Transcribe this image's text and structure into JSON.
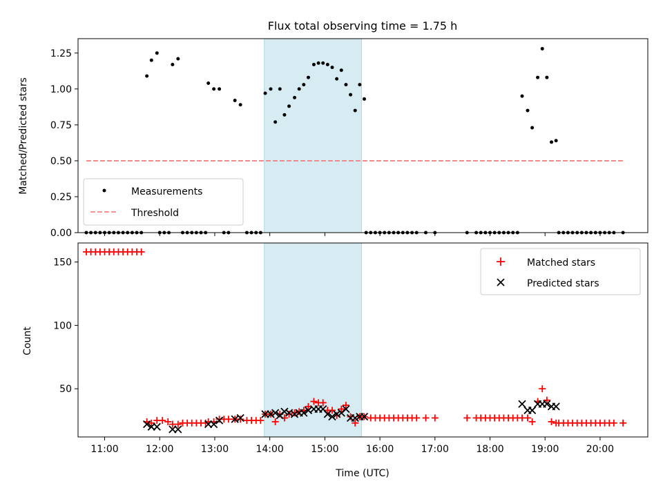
{
  "chart_data": [
    {
      "type": "scatter",
      "title": "Flux total observing time = 1.75 h",
      "xlabel": "",
      "ylabel": "Matched/Predicted stars",
      "xlim": [
        "10:31",
        "20:52"
      ],
      "ylim": [
        0,
        1.35
      ],
      "yticks": [
        "0.00",
        "0.25",
        "0.50",
        "0.75",
        "1.00",
        "1.25"
      ],
      "highlight_span": [
        "13:54",
        "15:40"
      ],
      "legend": {
        "placement": "lower-left",
        "entries": [
          "Measurements",
          "Threshold"
        ]
      },
      "series": [
        {
          "name": "Measurements",
          "marker": "dot",
          "color": "#000000",
          "points": [
            [
              "10:40",
              0
            ],
            [
              "10:45",
              0
            ],
            [
              "10:50",
              0
            ],
            [
              "10:55",
              0
            ],
            [
              "11:00",
              0
            ],
            [
              "11:05",
              0
            ],
            [
              "11:10",
              0
            ],
            [
              "11:15",
              0
            ],
            [
              "11:20",
              0
            ],
            [
              "11:25",
              0
            ],
            [
              "11:30",
              0
            ],
            [
              "11:35",
              0
            ],
            [
              "11:40",
              0
            ],
            [
              "11:46",
              1.09
            ],
            [
              "11:51",
              1.2
            ],
            [
              "11:57",
              1.25
            ],
            [
              "12:00",
              0
            ],
            [
              "12:05",
              0
            ],
            [
              "12:10",
              0
            ],
            [
              "12:14",
              1.17
            ],
            [
              "12:20",
              1.21
            ],
            [
              "12:25",
              0
            ],
            [
              "12:30",
              0
            ],
            [
              "12:35",
              0
            ],
            [
              "12:40",
              0
            ],
            [
              "12:45",
              0
            ],
            [
              "12:50",
              0
            ],
            [
              "12:53",
              1.04
            ],
            [
              "12:59",
              1.0
            ],
            [
              "13:05",
              1.0
            ],
            [
              "13:10",
              0
            ],
            [
              "13:15",
              0
            ],
            [
              "13:22",
              0.92
            ],
            [
              "13:28",
              0.89
            ],
            [
              "13:35",
              0
            ],
            [
              "13:40",
              0
            ],
            [
              "13:45",
              0
            ],
            [
              "13:50",
              0
            ],
            [
              "13:55",
              0.97
            ],
            [
              "14:01",
              1.0
            ],
            [
              "14:06",
              0.77
            ],
            [
              "14:11",
              1.0
            ],
            [
              "14:16",
              0.82
            ],
            [
              "14:21",
              0.88
            ],
            [
              "14:27",
              0.94
            ],
            [
              "14:32",
              1.0
            ],
            [
              "14:37",
              1.03
            ],
            [
              "14:42",
              1.08
            ],
            [
              "14:48",
              1.17
            ],
            [
              "14:53",
              1.18
            ],
            [
              "14:58",
              1.18
            ],
            [
              "15:03",
              1.17
            ],
            [
              "15:08",
              1.15
            ],
            [
              "15:13",
              1.07
            ],
            [
              "15:18",
              1.13
            ],
            [
              "15:23",
              1.03
            ],
            [
              "15:28",
              0.96
            ],
            [
              "15:33",
              0.85
            ],
            [
              "15:38",
              1.03
            ],
            [
              "15:43",
              0.93
            ],
            [
              "15:45",
              0
            ],
            [
              "15:50",
              0
            ],
            [
              "15:55",
              0
            ],
            [
              "16:00",
              0
            ],
            [
              "16:05",
              0
            ],
            [
              "16:10",
              0
            ],
            [
              "16:15",
              0
            ],
            [
              "16:20",
              0
            ],
            [
              "16:25",
              0
            ],
            [
              "16:30",
              0
            ],
            [
              "16:35",
              0
            ],
            [
              "16:40",
              0
            ],
            [
              "16:50",
              0
            ],
            [
              "17:00",
              0
            ],
            [
              "17:35",
              0
            ],
            [
              "17:45",
              0
            ],
            [
              "17:50",
              0
            ],
            [
              "17:55",
              0
            ],
            [
              "18:00",
              0
            ],
            [
              "18:05",
              0
            ],
            [
              "18:10",
              0
            ],
            [
              "18:15",
              0
            ],
            [
              "18:20",
              0
            ],
            [
              "18:25",
              0
            ],
            [
              "18:30",
              0
            ],
            [
              "18:35",
              0.95
            ],
            [
              "18:41",
              0.85
            ],
            [
              "18:46",
              0.73
            ],
            [
              "18:52",
              1.08
            ],
            [
              "18:57",
              1.28
            ],
            [
              "19:02",
              1.08
            ],
            [
              "19:07",
              0.63
            ],
            [
              "19:12",
              0.64
            ],
            [
              "19:15",
              0
            ],
            [
              "19:20",
              0
            ],
            [
              "19:25",
              0
            ],
            [
              "19:30",
              0
            ],
            [
              "19:35",
              0
            ],
            [
              "19:40",
              0
            ],
            [
              "19:45",
              0
            ],
            [
              "19:50",
              0
            ],
            [
              "19:55",
              0
            ],
            [
              "20:00",
              0
            ],
            [
              "20:05",
              0
            ],
            [
              "20:10",
              0
            ],
            [
              "20:15",
              0
            ],
            [
              "20:25",
              0
            ]
          ]
        },
        {
          "name": "Threshold",
          "type": "line",
          "style": "dashed",
          "color": "#ff7f7f",
          "points": [
            [
              "10:40",
              0.5
            ],
            [
              "20:25",
              0.5
            ]
          ]
        }
      ]
    },
    {
      "type": "scatter",
      "title": "",
      "xlabel": "Time (UTC)",
      "ylabel": "Count",
      "xlim": [
        "10:31",
        "20:52"
      ],
      "ylim": [
        12,
        165
      ],
      "yticks": [
        "50",
        "100",
        "150"
      ],
      "xticks": [
        "11:00",
        "12:00",
        "13:00",
        "14:00",
        "15:00",
        "16:00",
        "17:00",
        "18:00",
        "19:00",
        "20:00"
      ],
      "highlight_span": [
        "13:54",
        "15:40"
      ],
      "legend": {
        "placement": "upper-right",
        "entries": [
          "Matched stars",
          "Predicted stars"
        ]
      },
      "series": [
        {
          "name": "Matched stars",
          "marker": "plus",
          "color": "#ff0000",
          "points": [
            [
              "10:40",
              158
            ],
            [
              "10:45",
              158
            ],
            [
              "10:50",
              158
            ],
            [
              "10:55",
              158
            ],
            [
              "11:00",
              158
            ],
            [
              "11:05",
              158
            ],
            [
              "11:10",
              158
            ],
            [
              "11:15",
              158
            ],
            [
              "11:20",
              158
            ],
            [
              "11:25",
              158
            ],
            [
              "11:30",
              158
            ],
            [
              "11:35",
              158
            ],
            [
              "11:40",
              158
            ],
            [
              "11:46",
              24
            ],
            [
              "11:51",
              23
            ],
            [
              "11:57",
              25
            ],
            [
              "12:03",
              25
            ],
            [
              "12:09",
              24
            ],
            [
              "12:14",
              22
            ],
            [
              "12:20",
              22
            ],
            [
              "12:25",
              23
            ],
            [
              "12:30",
              23
            ],
            [
              "12:35",
              23
            ],
            [
              "12:40",
              23
            ],
            [
              "12:45",
              23
            ],
            [
              "12:50",
              23
            ],
            [
              "12:53",
              24
            ],
            [
              "12:59",
              24
            ],
            [
              "13:05",
              26
            ],
            [
              "13:10",
              26
            ],
            [
              "13:15",
              26
            ],
            [
              "13:22",
              26
            ],
            [
              "13:28",
              26
            ],
            [
              "13:35",
              25
            ],
            [
              "13:40",
              25
            ],
            [
              "13:45",
              25
            ],
            [
              "13:50",
              25
            ],
            [
              "13:55",
              30
            ],
            [
              "14:01",
              30
            ],
            [
              "14:06",
              24
            ],
            [
              "14:11",
              30
            ],
            [
              "14:16",
              27
            ],
            [
              "14:21",
              30
            ],
            [
              "14:27",
              31
            ],
            [
              "14:32",
              32
            ],
            [
              "14:37",
              33
            ],
            [
              "14:42",
              36
            ],
            [
              "14:48",
              40
            ],
            [
              "14:53",
              39
            ],
            [
              "14:58",
              39
            ],
            [
              "15:03",
              33
            ],
            [
              "15:08",
              33
            ],
            [
              "15:13",
              29
            ],
            [
              "15:18",
              34
            ],
            [
              "15:23",
              37
            ],
            [
              "15:28",
              28
            ],
            [
              "15:33",
              23
            ],
            [
              "15:38",
              28
            ],
            [
              "15:43",
              28
            ],
            [
              "15:50",
              27
            ],
            [
              "15:55",
              27
            ],
            [
              "16:00",
              27
            ],
            [
              "16:05",
              27
            ],
            [
              "16:10",
              27
            ],
            [
              "16:15",
              27
            ],
            [
              "16:20",
              27
            ],
            [
              "16:25",
              27
            ],
            [
              "16:30",
              27
            ],
            [
              "16:35",
              27
            ],
            [
              "16:40",
              27
            ],
            [
              "16:50",
              27
            ],
            [
              "17:00",
              27
            ],
            [
              "17:35",
              27
            ],
            [
              "17:45",
              27
            ],
            [
              "17:50",
              27
            ],
            [
              "17:55",
              27
            ],
            [
              "18:00",
              27
            ],
            [
              "18:05",
              27
            ],
            [
              "18:10",
              27
            ],
            [
              "18:15",
              27
            ],
            [
              "18:20",
              27
            ],
            [
              "18:25",
              27
            ],
            [
              "18:30",
              27
            ],
            [
              "18:35",
              27
            ],
            [
              "18:41",
              27
            ],
            [
              "18:46",
              24
            ],
            [
              "18:52",
              40
            ],
            [
              "18:57",
              50
            ],
            [
              "19:02",
              41
            ],
            [
              "19:07",
              24
            ],
            [
              "19:12",
              23
            ],
            [
              "19:15",
              23
            ],
            [
              "19:20",
              23
            ],
            [
              "19:25",
              23
            ],
            [
              "19:30",
              23
            ],
            [
              "19:35",
              23
            ],
            [
              "19:40",
              23
            ],
            [
              "19:45",
              23
            ],
            [
              "19:50",
              23
            ],
            [
              "19:55",
              23
            ],
            [
              "20:00",
              23
            ],
            [
              "20:05",
              23
            ],
            [
              "20:10",
              23
            ],
            [
              "20:15",
              23
            ],
            [
              "20:25",
              23
            ]
          ]
        },
        {
          "name": "Predicted stars",
          "marker": "x",
          "color": "#000000",
          "points": [
            [
              "11:46",
              22
            ],
            [
              "11:51",
              20
            ],
            [
              "11:57",
              20
            ],
            [
              "12:14",
              18
            ],
            [
              "12:20",
              18
            ],
            [
              "12:53",
              22
            ],
            [
              "12:59",
              22
            ],
            [
              "13:05",
              25
            ],
            [
              "13:22",
              26
            ],
            [
              "13:28",
              27
            ],
            [
              "13:55",
              30
            ],
            [
              "14:01",
              30
            ],
            [
              "14:06",
              31
            ],
            [
              "14:11",
              29
            ],
            [
              "14:16",
              32
            ],
            [
              "14:21",
              31
            ],
            [
              "14:27",
              30
            ],
            [
              "14:32",
              31
            ],
            [
              "14:37",
              31
            ],
            [
              "14:42",
              33
            ],
            [
              "14:48",
              34
            ],
            [
              "14:53",
              34
            ],
            [
              "14:58",
              34
            ],
            [
              "15:03",
              30
            ],
            [
              "15:08",
              28
            ],
            [
              "15:13",
              30
            ],
            [
              "15:18",
              31
            ],
            [
              "15:23",
              34
            ],
            [
              "15:28",
              27
            ],
            [
              "15:33",
              27
            ],
            [
              "15:38",
              28
            ],
            [
              "15:43",
              28
            ],
            [
              "18:35",
              38
            ],
            [
              "18:41",
              33
            ],
            [
              "18:46",
              33
            ],
            [
              "18:52",
              38
            ],
            [
              "18:57",
              38
            ],
            [
              "19:02",
              38
            ],
            [
              "19:07",
              36
            ],
            [
              "19:12",
              36
            ]
          ]
        }
      ]
    }
  ]
}
